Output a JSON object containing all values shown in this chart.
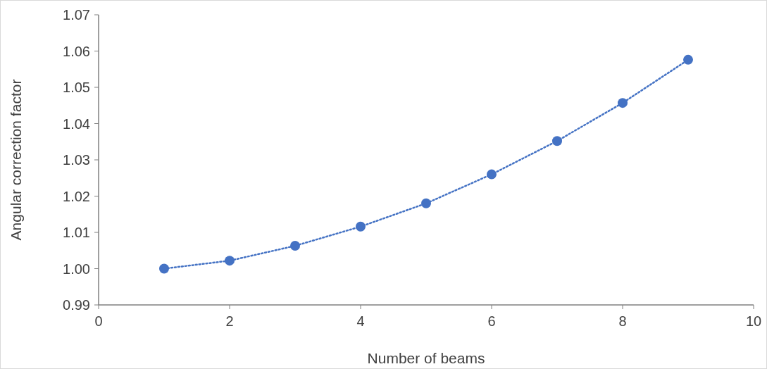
{
  "chart_data": {
    "type": "line",
    "xlabel": "Number of beams",
    "ylabel": "Angular correction factor",
    "x": [
      1,
      2,
      3,
      4,
      5,
      6,
      7,
      8,
      9
    ],
    "series": [
      {
        "color": "#4472c4",
        "values": [
          1.0,
          1.0022,
          1.0063,
          1.0116,
          1.018,
          1.026,
          1.0352,
          1.0457,
          1.0576
        ]
      }
    ],
    "xlim": [
      0,
      10
    ],
    "xticks": [
      0,
      2,
      4,
      6,
      8,
      10
    ],
    "ylim": [
      0.99,
      1.07
    ],
    "yticks": [
      {
        "value": 0.99,
        "label": "0.99"
      },
      {
        "value": 1.0,
        "label": "1.00"
      },
      {
        "value": 1.01,
        "label": "1.01"
      },
      {
        "value": 1.02,
        "label": "1.02"
      },
      {
        "value": 1.03,
        "label": "1.03"
      },
      {
        "value": 1.04,
        "label": "1.04"
      },
      {
        "value": 1.05,
        "label": "1.05"
      },
      {
        "value": 1.06,
        "label": "1.06"
      },
      {
        "value": 1.07,
        "label": "1.07"
      }
    ],
    "marker": "circle",
    "line_style": "dotted"
  }
}
